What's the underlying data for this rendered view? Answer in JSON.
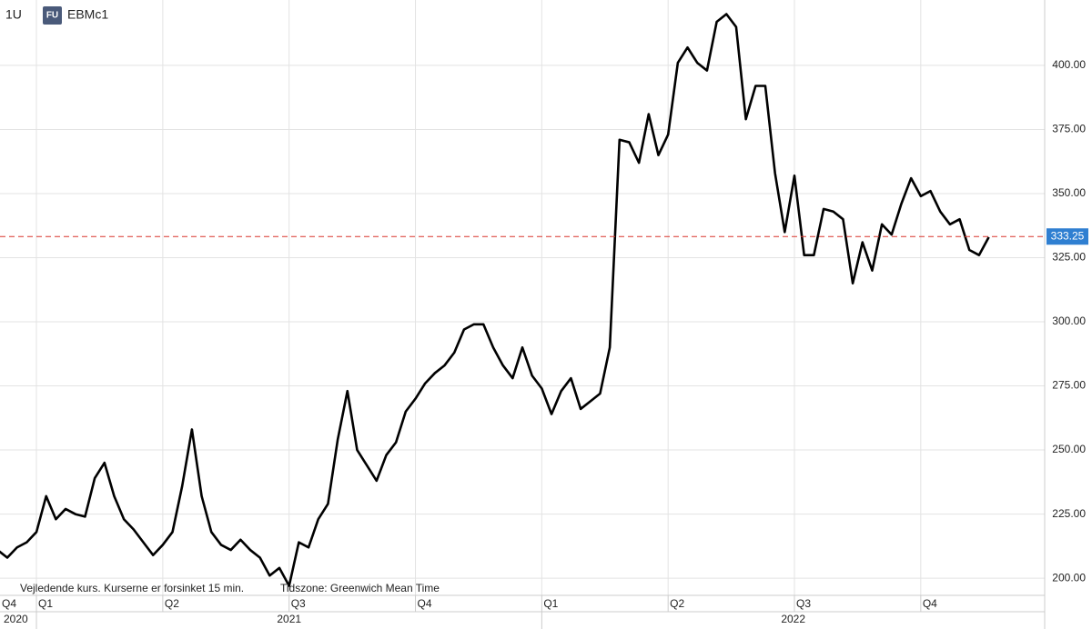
{
  "chart_data": {
    "type": "line",
    "interval": "1U",
    "badge": "FU",
    "footnote": "Vejledende kurs. Kurserne er forsinket 15 min.",
    "timezone": "Tidszone: Greenwich Mean Time",
    "x": [
      -4,
      -3,
      -2,
      -1,
      0,
      1,
      2,
      3,
      4,
      5,
      6,
      7,
      8,
      9,
      10,
      11,
      12,
      13,
      14,
      15,
      16,
      17,
      18,
      19,
      20,
      21,
      22,
      23,
      24,
      25,
      26,
      27,
      28,
      29,
      30,
      31,
      32,
      33,
      34,
      35,
      36,
      37,
      38,
      39,
      40,
      41,
      42,
      43,
      44,
      45,
      46,
      47,
      48,
      49,
      50,
      51,
      52,
      53,
      54,
      55,
      56,
      57,
      58,
      59,
      60,
      61,
      62,
      63,
      64,
      65,
      66,
      67,
      68,
      69,
      70,
      71,
      72,
      73,
      74,
      75,
      76,
      77,
      78,
      79,
      80,
      81,
      82,
      83,
      84,
      85,
      86,
      87,
      88,
      89,
      90,
      91,
      92,
      93,
      94,
      95,
      96,
      97,
      98
    ],
    "series": [
      {
        "name": "EBMc1",
        "color": "#000000",
        "values": [
          211,
          208,
          212,
          214,
          218,
          232,
          223,
          227,
          225,
          224,
          239,
          245,
          232,
          223,
          219,
          214,
          209,
          213,
          218,
          236,
          258,
          232,
          218,
          213,
          211,
          215,
          211,
          208,
          201,
          204,
          197,
          214,
          212,
          223,
          229,
          254,
          273,
          250,
          244,
          238,
          248,
          253,
          265,
          270,
          276,
          280,
          283,
          288,
          297,
          299,
          299,
          290,
          283,
          278,
          290,
          279,
          274,
          264,
          273,
          278,
          266,
          269,
          272,
          290,
          371,
          370,
          362,
          381,
          365,
          373,
          401,
          407,
          401,
          398,
          417,
          420,
          415,
          379,
          392,
          392,
          358,
          335,
          357,
          326,
          326,
          344,
          343,
          340,
          315,
          331,
          320,
          338,
          334,
          346,
          356,
          349,
          351,
          343,
          338,
          340,
          328,
          326,
          333
        ]
      }
    ],
    "last_price": 333.25,
    "xlim": [
      -3.75,
      103.75
    ],
    "xticks": [
      {
        "value": -13,
        "label": "Q4"
      },
      {
        "value": 0,
        "label": "Q1"
      },
      {
        "value": 13,
        "label": "Q2"
      },
      {
        "value": 26,
        "label": "Q3"
      },
      {
        "value": 39,
        "label": "Q4"
      },
      {
        "value": 52,
        "label": "Q1"
      },
      {
        "value": 65,
        "label": "Q2"
      },
      {
        "value": 78,
        "label": "Q3"
      },
      {
        "value": 91,
        "label": "Q4"
      }
    ],
    "years": [
      {
        "value": -13,
        "label": "2020"
      },
      {
        "value": 0,
        "label": "2021"
      },
      {
        "value": 52,
        "label": "2022"
      }
    ],
    "ylim": [
      193.3,
      425.5
    ],
    "yticks": [
      {
        "value": 200,
        "label": "200.00"
      },
      {
        "value": 225,
        "label": "225.00"
      },
      {
        "value": 250,
        "label": "250.00"
      },
      {
        "value": 275,
        "label": "275.00"
      },
      {
        "value": 300,
        "label": "300.00"
      },
      {
        "value": 325,
        "label": "325.00"
      },
      {
        "value": 350,
        "label": "350.00"
      },
      {
        "value": 375,
        "label": "375.00"
      },
      {
        "value": 400,
        "label": "400.00"
      }
    ],
    "grid": true
  }
}
